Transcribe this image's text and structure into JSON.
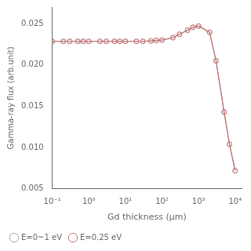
{
  "chart_data": {
    "type": "line",
    "xlabel": "Gd thickness (μm)",
    "ylabel": "Gamma-ray flux (arb.unit)",
    "x": [
      0.1,
      0.2,
      0.3,
      0.5,
      0.7,
      1.0,
      2.0,
      3.0,
      5.0,
      7.0,
      10.0,
      20.0,
      30.0,
      50.0,
      70.0,
      100.0,
      200.0,
      300.0,
      500.0,
      700.0,
      1000.0,
      2000.0,
      3000.0,
      5000.0,
      7000.0,
      10000.0
    ],
    "series": [
      {
        "name": "E=0~1 eV",
        "color": "#aaaaaa",
        "values": [
          0.02285,
          0.02285,
          0.02285,
          0.02285,
          0.02285,
          0.02285,
          0.02285,
          0.02285,
          0.02285,
          0.02285,
          0.02285,
          0.02285,
          0.02285,
          0.0229,
          0.02295,
          0.023,
          0.0233,
          0.0237,
          0.0242,
          0.02455,
          0.0247,
          0.02395,
          0.0205,
          0.0143,
          0.0104,
          0.0072
        ]
      },
      {
        "name": "E=0.25 eV",
        "color": "#c97070",
        "values": [
          0.02285,
          0.02285,
          0.02285,
          0.02285,
          0.02285,
          0.02285,
          0.02285,
          0.02285,
          0.02285,
          0.02285,
          0.02285,
          0.02285,
          0.02285,
          0.0229,
          0.02295,
          0.023,
          0.0233,
          0.0237,
          0.0242,
          0.02455,
          0.0247,
          0.02395,
          0.0205,
          0.0143,
          0.0104,
          0.0072
        ]
      }
    ],
    "xlim": [
      0.1,
      15000
    ],
    "xticks": [
      {
        "value": 0.1,
        "label": "10⁻¹"
      },
      {
        "value": 1,
        "label": "10⁰"
      },
      {
        "value": 10,
        "label": "10¹"
      },
      {
        "value": 100,
        "label": "10²"
      },
      {
        "value": 1000,
        "label": "10³"
      },
      {
        "value": 10000,
        "label": "10⁴"
      }
    ],
    "ylim": [
      0.005,
      0.027
    ],
    "yticks": [
      0.005,
      {
        "value": 0.01,
        "label": "0.010"
      },
      0.015,
      {
        "value": 0.02,
        "label": "0.020"
      },
      0.025
    ],
    "log": "x",
    "grid": false,
    "legend": "lower left",
    "marker": "circle",
    "line_style": "solid"
  }
}
